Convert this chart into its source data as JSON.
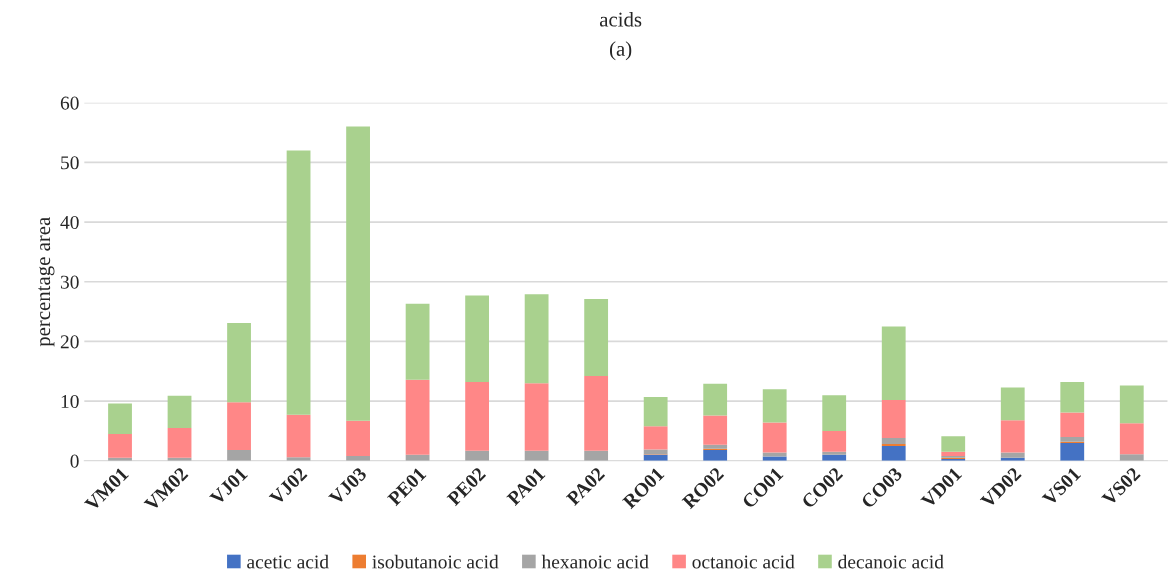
{
  "chart_data": {
    "type": "bar",
    "title": "acids",
    "subtitle": "(a)",
    "ylabel": "percentage area",
    "stacked": true,
    "categories": [
      "VM01",
      "VM02",
      "VJ01",
      "VJ02",
      "VJ03",
      "PE01",
      "PE02",
      "PA01",
      "PA02",
      "RO01",
      "RO02",
      "CO01",
      "CO02",
      "CO03",
      "VD01",
      "VD02",
      "VS01",
      "VS02"
    ],
    "series": [
      {
        "name": "acetic acid",
        "color": "#4472c4",
        "values": [
          0,
          0,
          0,
          0,
          0,
          0,
          0,
          0,
          0,
          1.0,
          1.8,
          0.7,
          1.0,
          2.5,
          0.3,
          0.5,
          3.0,
          0
        ]
      },
      {
        "name": "isobutanoic acid",
        "color": "#ed7d31",
        "values": [
          0,
          0,
          0,
          0,
          0,
          0,
          0,
          0,
          0,
          0.1,
          0.2,
          0,
          0,
          0.3,
          0.2,
          0,
          0.2,
          0
        ]
      },
      {
        "name": "hexanoic acid",
        "color": "#a5a5a5",
        "values": [
          0.5,
          0.5,
          1.8,
          0.6,
          0.8,
          1.0,
          1.7,
          1.7,
          1.7,
          0.8,
          0.7,
          0.7,
          0.5,
          1.0,
          0.3,
          0.9,
          0.8,
          1.1
        ]
      },
      {
        "name": "octanoic acid",
        "color": "#ff8787",
        "values": [
          4.0,
          5.0,
          8.0,
          7.1,
          5.9,
          12.6,
          11.5,
          11.3,
          12.5,
          3.9,
          4.9,
          5.0,
          3.5,
          6.4,
          0.7,
          5.4,
          4.1,
          5.2
        ]
      },
      {
        "name": "decanoic acid",
        "color": "#a9d18e",
        "values": [
          5.1,
          5.4,
          13.3,
          44.3,
          49.3,
          12.7,
          14.5,
          14.9,
          12.9,
          4.9,
          5.3,
          5.6,
          6.0,
          12.3,
          2.6,
          5.5,
          5.1,
          6.3
        ]
      }
    ],
    "ylim": [
      0,
      60
    ],
    "yticks": [
      0,
      10,
      20,
      30,
      40,
      50,
      60
    ],
    "grid": "y",
    "legend": "bottom"
  }
}
